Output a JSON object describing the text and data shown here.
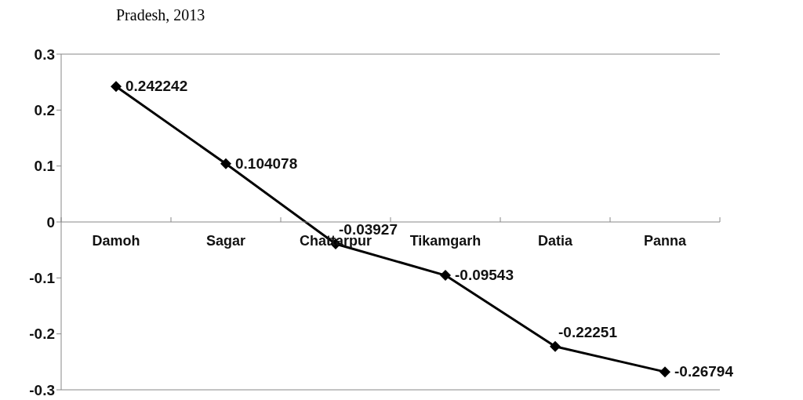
{
  "chart_data": {
    "type": "line",
    "title": "Pradesh, 2013",
    "categories": [
      "Damoh",
      "Sagar",
      "Chattarpur",
      "Tikamgarh",
      "Datia",
      "Panna"
    ],
    "series": [
      {
        "color": "#000000",
        "values": [
          0.242242,
          0.104078,
          -0.03927,
          -0.09543,
          -0.22251,
          -0.26794
        ]
      }
    ],
    "ylim": [
      -0.3,
      0.3
    ],
    "yticks": [
      -0.3,
      -0.2,
      -0.1,
      0,
      0.1,
      0.2,
      0.3
    ],
    "marker": "diamond",
    "line_style": "solid",
    "data_labels": true
  }
}
